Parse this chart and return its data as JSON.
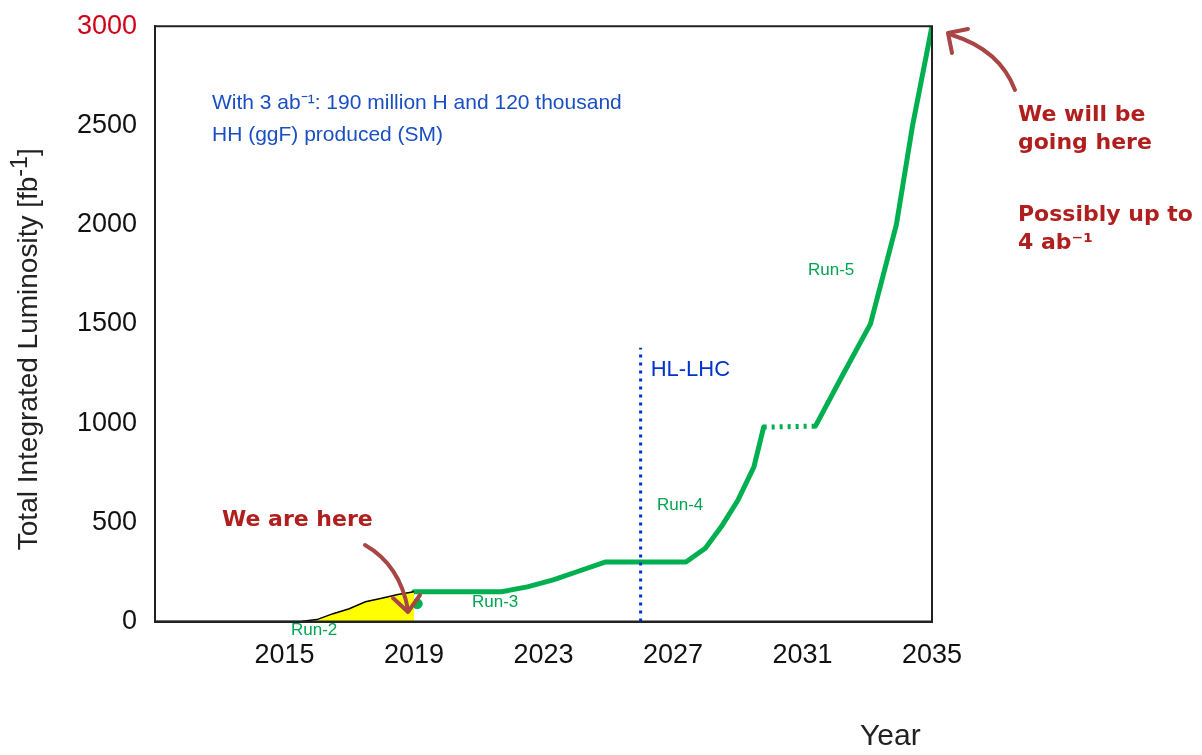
{
  "chart_data": {
    "type": "line",
    "xlabel": "Year",
    "ylabel": "Total Integrated Luminosity [fb$^{-1}$]",
    "xlim": [
      2011,
      2035
    ],
    "xticks": [
      2015,
      2019,
      2023,
      2027,
      2031,
      2035
    ],
    "ylim": [
      0,
      3000
    ],
    "yticks": [
      0,
      500,
      1000,
      1500,
      2000,
      2500,
      3000
    ],
    "grid": false,
    "legend": false,
    "series": [
      {
        "type": "area",
        "color": "#ffff00",
        "x": [
          2011,
          2015.5,
          2016,
          2016.5,
          2017,
          2017.5,
          2018,
          2018.5,
          2019
        ],
        "values": [
          0,
          0,
          10,
          40,
          65,
          100,
          118,
          137,
          150
        ]
      },
      {
        "color": "#00b050",
        "line_style": "solid",
        "x": [
          2019,
          2021.7,
          2022.5,
          2023.3,
          2024.1,
          2024.9,
          2027.4,
          2028,
          2028.5,
          2029,
          2029.5,
          2029.8
        ],
        "values": [
          150,
          150,
          175,
          210,
          255,
          300,
          300,
          370,
          480,
          610,
          780,
          980
        ]
      },
      {
        "color": "#00b050",
        "line_style": "dotted",
        "x": [
          2029.8,
          2031.4
        ],
        "values": [
          980,
          985
        ]
      },
      {
        "color": "#00b050",
        "line_style": "solid",
        "x": [
          2031.4,
          2032.2,
          2033.1,
          2033.9,
          2034.4,
          2035
        ],
        "values": [
          985,
          1230,
          1500,
          2000,
          2500,
          3000
        ]
      },
      {
        "type": "scatter",
        "color": "#00b050",
        "marker": "circle",
        "x": [
          2019.1
        ],
        "values": [
          90
        ]
      }
    ],
    "ref_lines": [
      {
        "axis": "x",
        "value": 2026,
        "label": "HL-LHC",
        "color": "#0033cc",
        "line_style": "dotted"
      }
    ],
    "annotations": [
      "Run-2",
      "Run-3",
      "Run-4",
      "Run-5",
      "With 3 ab⁻¹: 190 million H and 120 thousand HH (ggF) produced (SM)",
      "We are here",
      "We will be going here",
      "Possibly up to 4 ab⁻¹"
    ]
  }
}
